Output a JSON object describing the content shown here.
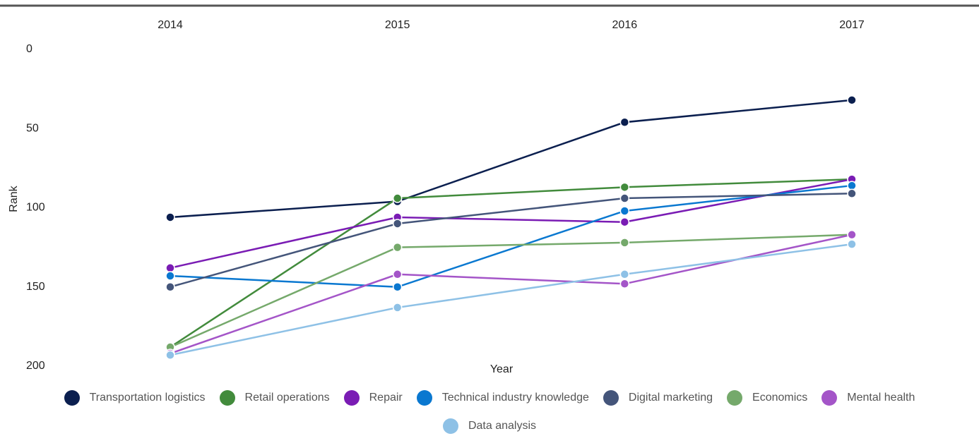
{
  "chart_data": {
    "type": "line",
    "categories": [
      "2014",
      "2015",
      "2016",
      "2017"
    ],
    "xlabel": "Year",
    "ylabel": "Rank",
    "ylim": [
      0,
      200
    ],
    "yticks": [
      0,
      50,
      100,
      150,
      200
    ],
    "y_inverted": true,
    "legend": "bottom",
    "series": [
      {
        "name": "Transportation logistics",
        "color": "#0b1f4f",
        "values": [
          106,
          96,
          46,
          32
        ]
      },
      {
        "name": "Retail operations",
        "color": "#428b3c",
        "values": [
          188,
          94,
          87,
          82
        ]
      },
      {
        "name": "Repair",
        "color": "#7a1cb4",
        "values": [
          138,
          106,
          109,
          82
        ]
      },
      {
        "name": "Technical industry knowledge",
        "color": "#0a78d0",
        "values": [
          143,
          150,
          102,
          86
        ]
      },
      {
        "name": "Digital marketing",
        "color": "#44557a",
        "values": [
          150,
          110,
          94,
          91
        ]
      },
      {
        "name": "Economics",
        "color": "#75a96b",
        "values": [
          188,
          125,
          122,
          117
        ]
      },
      {
        "name": "Mental health",
        "color": "#a455c8",
        "values": [
          192,
          142,
          148,
          117
        ]
      },
      {
        "name": "Data analysis",
        "color": "#8ec1e6",
        "values": [
          193,
          163,
          142,
          123
        ]
      }
    ]
  }
}
